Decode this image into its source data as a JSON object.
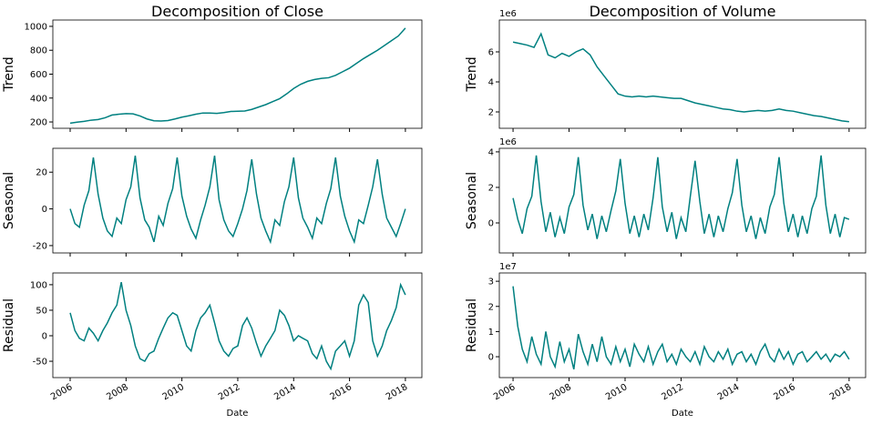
{
  "chart_data": [
    {
      "type": "line",
      "title": "Decomposition of Close",
      "ylabel": "Trend",
      "color": "#008080",
      "xtick_labels": false,
      "x": [
        2006,
        2006.25,
        2006.5,
        2006.75,
        2007,
        2007.25,
        2007.5,
        2007.75,
        2008,
        2008.25,
        2008.5,
        2008.75,
        2009,
        2009.25,
        2009.5,
        2009.75,
        2010,
        2010.25,
        2010.5,
        2010.75,
        2011,
        2011.25,
        2011.5,
        2011.75,
        2012,
        2012.25,
        2012.5,
        2012.75,
        2013,
        2013.25,
        2013.5,
        2013.75,
        2014,
        2014.25,
        2014.5,
        2014.75,
        2015,
        2015.25,
        2015.5,
        2015.75,
        2016,
        2016.25,
        2016.5,
        2016.75,
        2017,
        2017.25,
        2017.5,
        2017.75,
        2018
      ],
      "values": [
        190,
        198,
        205,
        215,
        220,
        235,
        258,
        265,
        270,
        268,
        250,
        225,
        210,
        208,
        212,
        225,
        240,
        252,
        265,
        275,
        275,
        272,
        278,
        288,
        290,
        292,
        305,
        325,
        345,
        370,
        395,
        435,
        480,
        515,
        540,
        555,
        565,
        570,
        590,
        620,
        650,
        690,
        730,
        765,
        800,
        840,
        880,
        920,
        985
      ],
      "xlim": [
        2005.38,
        2018.59
      ],
      "xticks": [
        2006,
        2008,
        2010,
        2012,
        2014,
        2016,
        2018
      ],
      "ylim": [
        147,
        1053
      ],
      "yticks": [
        200,
        400,
        600,
        800,
        1000
      ]
    },
    {
      "type": "line",
      "ylabel": "Seasonal",
      "color": "#008080",
      "xtick_labels": false,
      "x": [
        2006,
        2006.17,
        2006.33,
        2006.5,
        2006.67,
        2006.83,
        2007,
        2007.17,
        2007.33,
        2007.5,
        2007.67,
        2007.83,
        2008,
        2008.17,
        2008.33,
        2008.5,
        2008.67,
        2008.83,
        2009,
        2009.17,
        2009.33,
        2009.5,
        2009.67,
        2009.83,
        2010,
        2010.17,
        2010.33,
        2010.5,
        2010.67,
        2010.83,
        2011,
        2011.17,
        2011.33,
        2011.5,
        2011.67,
        2011.83,
        2012,
        2012.17,
        2012.33,
        2012.5,
        2012.67,
        2012.83,
        2013,
        2013.17,
        2013.33,
        2013.5,
        2013.67,
        2013.83,
        2014,
        2014.17,
        2014.33,
        2014.5,
        2014.67,
        2014.83,
        2015,
        2015.17,
        2015.33,
        2015.5,
        2015.67,
        2015.83,
        2016,
        2016.17,
        2016.33,
        2016.5,
        2016.67,
        2016.83,
        2017,
        2017.17,
        2017.33,
        2017.5,
        2017.67,
        2017.83,
        2018
      ],
      "values": [
        0,
        -8,
        -10,
        2,
        10,
        28,
        8,
        -5,
        -12,
        -15,
        -5,
        -8,
        5,
        12,
        29,
        6,
        -6,
        -10,
        -18,
        -4,
        -9,
        3,
        11,
        28,
        7,
        -4,
        -11,
        -16,
        -6,
        2,
        12,
        29,
        5,
        -6,
        -12,
        -15,
        -8,
        0,
        10,
        27,
        8,
        -5,
        -12,
        -18,
        -6,
        -9,
        4,
        12,
        28,
        6,
        -5,
        -10,
        -16,
        -5,
        -8,
        3,
        11,
        28,
        7,
        -4,
        -12,
        -18,
        -6,
        -8,
        2,
        12,
        27,
        8,
        -5,
        -10,
        -15,
        -8,
        0
      ],
      "xlim": [
        2005.38,
        2018.59
      ],
      "xticks": [
        2006,
        2008,
        2010,
        2012,
        2014,
        2016,
        2018
      ],
      "ylim": [
        -24,
        33
      ],
      "yticks": [
        -20,
        0,
        20
      ]
    },
    {
      "type": "line",
      "ylabel": "Residual",
      "xlabel": "Date",
      "color": "#008080",
      "x": [
        2006,
        2006.17,
        2006.33,
        2006.5,
        2006.67,
        2006.83,
        2007,
        2007.17,
        2007.33,
        2007.5,
        2007.67,
        2007.83,
        2008,
        2008.17,
        2008.33,
        2008.5,
        2008.67,
        2008.83,
        2009,
        2009.17,
        2009.33,
        2009.5,
        2009.67,
        2009.83,
        2010,
        2010.17,
        2010.33,
        2010.5,
        2010.67,
        2010.83,
        2011,
        2011.17,
        2011.33,
        2011.5,
        2011.67,
        2011.83,
        2012,
        2012.17,
        2012.33,
        2012.5,
        2012.67,
        2012.83,
        2013,
        2013.17,
        2013.33,
        2013.5,
        2013.67,
        2013.83,
        2014,
        2014.17,
        2014.33,
        2014.5,
        2014.67,
        2014.83,
        2015,
        2015.17,
        2015.33,
        2015.5,
        2015.67,
        2015.83,
        2016,
        2016.17,
        2016.33,
        2016.5,
        2016.67,
        2016.83,
        2017,
        2017.17,
        2017.33,
        2017.5,
        2017.67,
        2017.83,
        2018
      ],
      "values": [
        45,
        10,
        -5,
        -10,
        15,
        5,
        -10,
        10,
        25,
        45,
        60,
        105,
        50,
        20,
        -20,
        -45,
        -50,
        -35,
        -30,
        -5,
        15,
        35,
        45,
        40,
        10,
        -20,
        -30,
        10,
        35,
        45,
        60,
        25,
        -10,
        -30,
        -40,
        -25,
        -20,
        20,
        35,
        15,
        -15,
        -40,
        -20,
        -5,
        10,
        50,
        40,
        20,
        -10,
        0,
        -5,
        -10,
        -35,
        -45,
        -20,
        -50,
        -65,
        -30,
        -20,
        -10,
        -40,
        -10,
        60,
        80,
        65,
        -10,
        -40,
        -20,
        10,
        30,
        55,
        100,
        80
      ],
      "xlim": [
        2005.38,
        2018.59
      ],
      "xticks": [
        2006,
        2008,
        2010,
        2012,
        2014,
        2016,
        2018
      ],
      "ylim": [
        -82,
        123
      ],
      "yticks": [
        -50,
        0,
        50,
        100
      ]
    },
    {
      "type": "line",
      "title": "Decomposition of Volume",
      "ylabel": "Trend",
      "offset_label": "1e6",
      "color": "#008080",
      "xtick_labels": false,
      "x": [
        2006,
        2006.25,
        2006.5,
        2006.75,
        2007,
        2007.25,
        2007.5,
        2007.75,
        2008,
        2008.25,
        2008.5,
        2008.75,
        2009,
        2009.25,
        2009.5,
        2009.75,
        2010,
        2010.25,
        2010.5,
        2010.75,
        2011,
        2011.25,
        2011.5,
        2011.75,
        2012,
        2012.25,
        2012.5,
        2012.75,
        2013,
        2013.25,
        2013.5,
        2013.75,
        2014,
        2014.25,
        2014.5,
        2014.75,
        2015,
        2015.25,
        2015.5,
        2015.75,
        2016,
        2016.25,
        2016.5,
        2016.75,
        2017,
        2017.25,
        2017.5,
        2017.75,
        2018
      ],
      "values": [
        6.65,
        6.55,
        6.45,
        6.3,
        7.2,
        5.8,
        5.6,
        5.9,
        5.7,
        6.0,
        6.2,
        5.8,
        5.0,
        4.4,
        3.8,
        3.2,
        3.05,
        3.0,
        3.05,
        3.0,
        3.05,
        3.0,
        2.95,
        2.9,
        2.9,
        2.75,
        2.6,
        2.5,
        2.4,
        2.3,
        2.2,
        2.15,
        2.05,
        2.0,
        2.05,
        2.1,
        2.05,
        2.1,
        2.2,
        2.1,
        2.05,
        1.95,
        1.85,
        1.75,
        1.7,
        1.6,
        1.5,
        1.4,
        1.35
      ],
      "xlim": [
        2005.51,
        2018.59
      ],
      "xticks": [
        2006,
        2008,
        2010,
        2012,
        2014,
        2016,
        2018
      ],
      "ylim": [
        0.91,
        8.12
      ],
      "yticks": [
        2,
        4,
        6
      ]
    },
    {
      "type": "line",
      "ylabel": "Seasonal",
      "offset_label": "1e6",
      "color": "#008080",
      "xtick_labels": false,
      "x": [
        2006,
        2006.17,
        2006.33,
        2006.5,
        2006.67,
        2006.83,
        2007,
        2007.17,
        2007.33,
        2007.5,
        2007.67,
        2007.83,
        2008,
        2008.17,
        2008.33,
        2008.5,
        2008.67,
        2008.83,
        2009,
        2009.17,
        2009.33,
        2009.5,
        2009.67,
        2009.83,
        2010,
        2010.17,
        2010.33,
        2010.5,
        2010.67,
        2010.83,
        2011,
        2011.17,
        2011.33,
        2011.5,
        2011.67,
        2011.83,
        2012,
        2012.17,
        2012.33,
        2012.5,
        2012.67,
        2012.83,
        2013,
        2013.17,
        2013.33,
        2013.5,
        2013.67,
        2013.83,
        2014,
        2014.17,
        2014.33,
        2014.5,
        2014.67,
        2014.83,
        2015,
        2015.17,
        2015.33,
        2015.5,
        2015.67,
        2015.83,
        2016,
        2016.17,
        2016.33,
        2016.5,
        2016.67,
        2016.83,
        2017,
        2017.17,
        2017.33,
        2017.5,
        2017.67,
        2017.83,
        2018
      ],
      "values": [
        1.4,
        0.2,
        -0.6,
        0.8,
        1.5,
        3.8,
        1.2,
        -0.5,
        0.6,
        -0.8,
        0.3,
        -0.6,
        0.9,
        1.6,
        3.7,
        1.0,
        -0.4,
        0.5,
        -0.9,
        0.4,
        -0.5,
        0.7,
        1.8,
        3.6,
        1.1,
        -0.6,
        0.4,
        -0.8,
        0.5,
        -0.4,
        1.4,
        3.7,
        0.9,
        -0.5,
        0.6,
        -0.9,
        0.3,
        -0.5,
        1.5,
        3.5,
        1.2,
        -0.6,
        0.5,
        -0.8,
        0.4,
        -0.5,
        0.8,
        1.7,
        3.6,
        1.0,
        -0.5,
        0.4,
        -0.9,
        0.3,
        -0.6,
        0.9,
        1.6,
        3.7,
        1.1,
        -0.5,
        0.5,
        -0.8,
        0.4,
        -0.6,
        0.8,
        1.5,
        3.8,
        1.0,
        -0.6,
        0.5,
        -0.8,
        0.3,
        0.2
      ],
      "xlim": [
        2005.51,
        2018.59
      ],
      "xticks": [
        2006,
        2008,
        2010,
        2012,
        2014,
        2016,
        2018
      ],
      "ylim": [
        -1.69,
        4.2
      ],
      "yticks": [
        0,
        2,
        4
      ]
    },
    {
      "type": "line",
      "ylabel": "Residual",
      "xlabel": "Date",
      "offset_label": "1e7",
      "color": "#008080",
      "x": [
        2006,
        2006.17,
        2006.33,
        2006.5,
        2006.67,
        2006.83,
        2007,
        2007.17,
        2007.33,
        2007.5,
        2007.67,
        2007.83,
        2008,
        2008.17,
        2008.33,
        2008.5,
        2008.67,
        2008.83,
        2009,
        2009.17,
        2009.33,
        2009.5,
        2009.67,
        2009.83,
        2010,
        2010.17,
        2010.33,
        2010.5,
        2010.67,
        2010.83,
        2011,
        2011.17,
        2011.33,
        2011.5,
        2011.67,
        2011.83,
        2012,
        2012.17,
        2012.33,
        2012.5,
        2012.67,
        2012.83,
        2013,
        2013.17,
        2013.33,
        2013.5,
        2013.67,
        2013.83,
        2014,
        2014.17,
        2014.33,
        2014.5,
        2014.67,
        2014.83,
        2015,
        2015.17,
        2015.33,
        2015.5,
        2015.67,
        2015.83,
        2016,
        2016.17,
        2016.33,
        2016.5,
        2016.67,
        2016.83,
        2017,
        2017.17,
        2017.33,
        2017.5,
        2017.67,
        2017.83,
        2018
      ],
      "values": [
        2.8,
        1.2,
        0.3,
        -0.2,
        0.8,
        0.1,
        -0.3,
        1.0,
        0.0,
        -0.4,
        0.6,
        -0.2,
        0.3,
        -0.5,
        0.9,
        0.2,
        -0.3,
        0.5,
        -0.2,
        0.8,
        0.0,
        -0.3,
        0.4,
        -0.2,
        0.3,
        -0.4,
        0.5,
        0.1,
        -0.2,
        0.4,
        -0.3,
        0.2,
        0.5,
        -0.2,
        0.1,
        -0.3,
        0.3,
        0.0,
        -0.2,
        0.2,
        -0.3,
        0.4,
        0.0,
        -0.2,
        0.2,
        -0.1,
        0.3,
        -0.3,
        0.1,
        0.2,
        -0.2,
        0.1,
        -0.3,
        0.2,
        0.5,
        0.0,
        -0.2,
        0.3,
        -0.1,
        0.2,
        -0.3,
        0.1,
        0.2,
        -0.2,
        0.0,
        0.2,
        -0.1,
        0.1,
        -0.2,
        0.1,
        0.0,
        0.2,
        -0.1
      ],
      "xlim": [
        2005.51,
        2018.59
      ],
      "xticks": [
        2006,
        2008,
        2010,
        2012,
        2014,
        2016,
        2018
      ],
      "ylim": [
        -0.83,
        3.33
      ],
      "yticks": [
        0,
        1,
        2,
        3
      ]
    }
  ]
}
